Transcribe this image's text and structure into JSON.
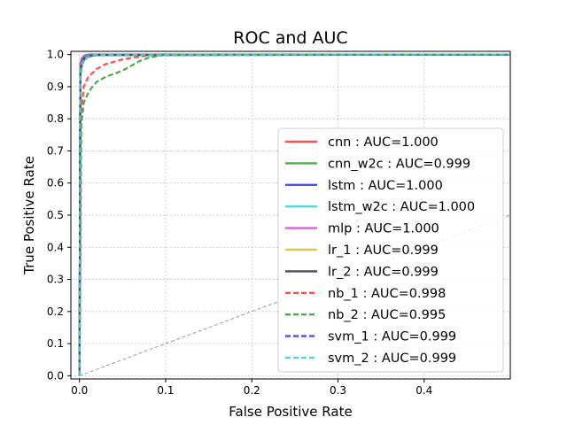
{
  "chart_data": {
    "type": "line",
    "title": "ROC and AUC",
    "xlabel": "False Positive Rate",
    "ylabel": "True Positive Rate",
    "xlim": [
      -0.01,
      0.5
    ],
    "ylim": [
      -0.01,
      1.01
    ],
    "xticks": [
      0.0,
      0.1,
      0.2,
      0.3,
      0.4
    ],
    "xtick_labels": [
      "0.0",
      "0.1",
      "0.2",
      "0.3",
      "0.4"
    ],
    "yticks": [
      0.0,
      0.1,
      0.2,
      0.3,
      0.4,
      0.5,
      0.6,
      0.7,
      0.8,
      0.9,
      1.0
    ],
    "ytick_labels": [
      "0.0",
      "0.1",
      "0.2",
      "0.3",
      "0.4",
      "0.5",
      "0.6",
      "0.7",
      "0.8",
      "0.9",
      "1.0"
    ],
    "grid": true,
    "legend_position": "lower-right",
    "diagonal": {
      "x": [
        0,
        1
      ],
      "y": [
        0,
        1
      ],
      "color": "#999999",
      "dash": "dashed"
    },
    "series": [
      {
        "name": "cnn : AUC=1.000",
        "color": "#ff3b3b",
        "dash": "solid",
        "x": [
          0,
          0.001,
          0.003,
          0.006,
          0.01,
          0.02,
          0.5
        ],
        "y": [
          0,
          0.96,
          0.985,
          0.993,
          0.997,
          1.0,
          1.0
        ]
      },
      {
        "name": "cnn_w2c : AUC=0.999",
        "color": "#3ca03c",
        "dash": "solid",
        "x": [
          0,
          0.001,
          0.003,
          0.006,
          0.01,
          0.02,
          0.5
        ],
        "y": [
          0,
          0.93,
          0.97,
          0.985,
          0.993,
          0.998,
          1.0
        ]
      },
      {
        "name": "lstm : AUC=1.000",
        "color": "#3b3be6",
        "dash": "solid",
        "x": [
          0,
          0.001,
          0.003,
          0.006,
          0.01,
          0.5
        ],
        "y": [
          0,
          0.97,
          0.99,
          0.997,
          1.0,
          1.0
        ]
      },
      {
        "name": "lstm_w2c : AUC=1.000",
        "color": "#4dd0d0",
        "dash": "solid",
        "x": [
          0,
          0.001,
          0.003,
          0.006,
          0.01,
          0.5
        ],
        "y": [
          0,
          0.96,
          0.985,
          0.995,
          0.999,
          1.0
        ]
      },
      {
        "name": "mlp : AUC=1.000",
        "color": "#d44fd4",
        "dash": "solid",
        "x": [
          0,
          0.001,
          0.003,
          0.006,
          0.01,
          0.5
        ],
        "y": [
          0,
          0.97,
          0.99,
          0.996,
          0.999,
          1.0
        ]
      },
      {
        "name": "lr_1 : AUC=0.999",
        "color": "#d2c43c",
        "dash": "solid",
        "x": [
          0,
          0.001,
          0.003,
          0.006,
          0.01,
          0.02,
          0.5
        ],
        "y": [
          0,
          0.95,
          0.98,
          0.99,
          0.996,
          0.999,
          1.0
        ]
      },
      {
        "name": "lr_2 : AUC=0.999",
        "color": "#3c3c3c",
        "dash": "solid",
        "x": [
          0,
          0.001,
          0.003,
          0.006,
          0.01,
          0.02,
          0.5
        ],
        "y": [
          0,
          0.95,
          0.98,
          0.99,
          0.996,
          0.999,
          1.0
        ]
      },
      {
        "name": "nb_1 : AUC=0.998",
        "color": "#ff3b3b",
        "dash": "dashed",
        "x": [
          0,
          0.002,
          0.005,
          0.01,
          0.02,
          0.03,
          0.05,
          0.08,
          0.5
        ],
        "y": [
          0,
          0.82,
          0.9,
          0.93,
          0.955,
          0.97,
          0.985,
          0.998,
          1.0
        ]
      },
      {
        "name": "nb_2 : AUC=0.995",
        "color": "#3ca03c",
        "dash": "dashed",
        "x": [
          0,
          0.002,
          0.005,
          0.01,
          0.015,
          0.02,
          0.03,
          0.05,
          0.06,
          0.07,
          0.08,
          0.09,
          0.1,
          0.5
        ],
        "y": [
          0,
          0.78,
          0.85,
          0.88,
          0.9,
          0.915,
          0.93,
          0.95,
          0.965,
          0.98,
          0.99,
          0.995,
          1.0,
          1.0
        ]
      },
      {
        "name": "svm_1 : AUC=0.999",
        "color": "#3b3be6",
        "dash": "dashed",
        "x": [
          0,
          0.001,
          0.003,
          0.006,
          0.01,
          0.02,
          0.5
        ],
        "y": [
          0,
          0.94,
          0.975,
          0.988,
          0.995,
          0.999,
          1.0
        ]
      },
      {
        "name": "svm_2 : AUC=0.999",
        "color": "#4dd0d0",
        "dash": "dashed",
        "x": [
          0,
          0.001,
          0.003,
          0.006,
          0.01,
          0.02,
          0.5
        ],
        "y": [
          0,
          0.94,
          0.975,
          0.988,
          0.995,
          0.999,
          1.0
        ]
      }
    ]
  }
}
